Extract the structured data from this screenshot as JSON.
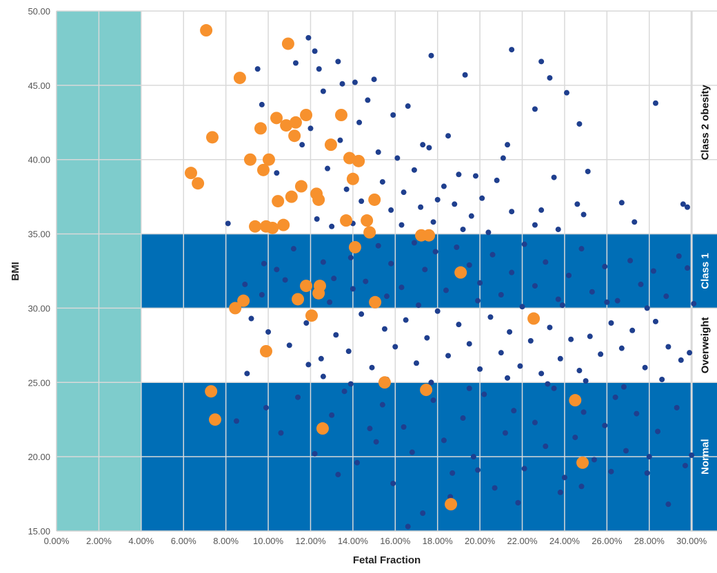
{
  "chart_data": {
    "type": "scatter",
    "title": "",
    "xlabel": "Fetal Fraction",
    "ylabel": "BMI",
    "xlim": [
      0,
      31.2
    ],
    "ylim": [
      15,
      50
    ],
    "x_ticks": [
      "0.00%",
      "2.00%",
      "4.00%",
      "6.00%",
      "8.00%",
      "10.00%",
      "12.00%",
      "14.00%",
      "16.00%",
      "18.00%",
      "20.00%",
      "22.00%",
      "24.00%",
      "26.00%",
      "28.00%",
      "30.00%"
    ],
    "y_ticks": [
      "15.00",
      "20.00",
      "25.00",
      "30.00",
      "35.00",
      "40.00",
      "45.00",
      "50.00"
    ],
    "grid": true,
    "colors": {
      "low_ff_band": "#7ecccc",
      "bmi_band": "#006eb6",
      "dark_points": "#1f3f8e",
      "highlight_points": "#f7912d"
    },
    "low_ff_region": [
      0,
      4
    ],
    "bmi_bands": [
      {
        "label": "Normal",
        "range": [
          15,
          25
        ],
        "shaded": true
      },
      {
        "label": "Overweight",
        "range": [
          25,
          30
        ],
        "shaded": false
      },
      {
        "label": "Class 1",
        "range": [
          30,
          35
        ],
        "shaded": true
      },
      {
        "label": "Class 2 obesity",
        "range": [
          35,
          50
        ],
        "shaded": false
      }
    ],
    "series": [
      {
        "points": [
          [
            8.1,
            35.7
          ],
          [
            9.5,
            46.1
          ],
          [
            9.7,
            43.7
          ],
          [
            10.4,
            39.1
          ],
          [
            11.3,
            46.5
          ],
          [
            11.9,
            48.2
          ],
          [
            12.2,
            47.3
          ],
          [
            12.4,
            46.1
          ],
          [
            12.6,
            44.6
          ],
          [
            13.3,
            46.6
          ],
          [
            13.5,
            45.1
          ],
          [
            14.1,
            45.2
          ],
          [
            14.7,
            44.0
          ],
          [
            15.0,
            45.4
          ],
          [
            15.9,
            43.0
          ],
          [
            16.6,
            43.6
          ],
          [
            17.3,
            41.0
          ],
          [
            17.7,
            47.0
          ],
          [
            18.5,
            41.6
          ],
          [
            19.3,
            45.7
          ],
          [
            21.5,
            47.4
          ],
          [
            22.6,
            43.4
          ],
          [
            22.9,
            46.6
          ],
          [
            23.3,
            45.5
          ],
          [
            24.1,
            44.5
          ],
          [
            24.7,
            42.4
          ],
          [
            28.3,
            43.8
          ],
          [
            11.6,
            41.0
          ],
          [
            12.0,
            42.1
          ],
          [
            13.4,
            41.3
          ],
          [
            14.3,
            42.5
          ],
          [
            15.2,
            40.5
          ],
          [
            16.1,
            40.1
          ],
          [
            16.9,
            39.3
          ],
          [
            17.6,
            40.8
          ],
          [
            18.3,
            38.2
          ],
          [
            19.0,
            39.0
          ],
          [
            19.8,
            38.9
          ],
          [
            20.8,
            38.6
          ],
          [
            21.1,
            40.1
          ],
          [
            21.3,
            41.0
          ],
          [
            23.5,
            38.8
          ],
          [
            25.1,
            39.2
          ],
          [
            12.8,
            39.4
          ],
          [
            13.7,
            38.0
          ],
          [
            14.4,
            37.2
          ],
          [
            15.4,
            38.5
          ],
          [
            15.8,
            36.6
          ],
          [
            16.4,
            37.8
          ],
          [
            17.2,
            36.8
          ],
          [
            18.0,
            37.3
          ],
          [
            18.8,
            37.0
          ],
          [
            19.6,
            36.2
          ],
          [
            20.1,
            37.4
          ],
          [
            21.5,
            36.5
          ],
          [
            22.9,
            36.6
          ],
          [
            24.6,
            37.0
          ],
          [
            24.9,
            36.3
          ],
          [
            26.7,
            37.1
          ],
          [
            27.3,
            35.8
          ],
          [
            29.6,
            37.0
          ],
          [
            29.8,
            36.8
          ],
          [
            12.3,
            36.0
          ],
          [
            13.0,
            35.5
          ],
          [
            14.0,
            35.7
          ],
          [
            16.3,
            35.6
          ],
          [
            17.8,
            35.8
          ],
          [
            19.2,
            35.3
          ],
          [
            20.4,
            35.1
          ],
          [
            22.6,
            35.6
          ],
          [
            23.7,
            35.3
          ],
          [
            9.8,
            33.0
          ],
          [
            10.4,
            32.6
          ],
          [
            11.2,
            34.0
          ],
          [
            12.6,
            33.1
          ],
          [
            13.1,
            32.0
          ],
          [
            13.9,
            33.4
          ],
          [
            14.6,
            31.8
          ],
          [
            15.2,
            34.2
          ],
          [
            15.8,
            33.0
          ],
          [
            16.3,
            31.4
          ],
          [
            16.9,
            34.4
          ],
          [
            17.4,
            32.6
          ],
          [
            17.9,
            33.8
          ],
          [
            18.4,
            31.2
          ],
          [
            18.9,
            34.1
          ],
          [
            19.5,
            32.9
          ],
          [
            20.0,
            31.7
          ],
          [
            20.6,
            33.6
          ],
          [
            21.0,
            30.9
          ],
          [
            21.5,
            32.4
          ],
          [
            22.1,
            34.3
          ],
          [
            22.6,
            31.5
          ],
          [
            23.1,
            33.1
          ],
          [
            23.7,
            30.6
          ],
          [
            24.2,
            32.2
          ],
          [
            24.8,
            34.0
          ],
          [
            25.3,
            31.1
          ],
          [
            25.9,
            32.8
          ],
          [
            26.5,
            30.5
          ],
          [
            27.1,
            33.2
          ],
          [
            27.6,
            31.6
          ],
          [
            28.2,
            32.5
          ],
          [
            28.8,
            30.8
          ],
          [
            29.4,
            33.5
          ],
          [
            29.8,
            32.7
          ],
          [
            30.1,
            30.3
          ],
          [
            9.2,
            29.3
          ],
          [
            10.0,
            28.4
          ],
          [
            11.0,
            27.5
          ],
          [
            11.8,
            29.0
          ],
          [
            12.5,
            26.6
          ],
          [
            13.2,
            28.2
          ],
          [
            13.8,
            27.1
          ],
          [
            14.4,
            29.6
          ],
          [
            14.9,
            26.0
          ],
          [
            15.5,
            28.6
          ],
          [
            16.0,
            27.4
          ],
          [
            16.5,
            29.2
          ],
          [
            17.0,
            26.3
          ],
          [
            17.5,
            28.0
          ],
          [
            18.0,
            29.8
          ],
          [
            18.5,
            26.8
          ],
          [
            19.0,
            28.9
          ],
          [
            19.5,
            27.6
          ],
          [
            20.0,
            25.9
          ],
          [
            20.5,
            29.4
          ],
          [
            21.0,
            27.0
          ],
          [
            21.4,
            28.4
          ],
          [
            21.9,
            26.1
          ],
          [
            22.4,
            27.8
          ],
          [
            22.9,
            25.6
          ],
          [
            23.3,
            28.7
          ],
          [
            23.8,
            26.6
          ],
          [
            24.3,
            27.9
          ],
          [
            24.7,
            25.8
          ],
          [
            25.2,
            28.1
          ],
          [
            25.7,
            26.9
          ],
          [
            26.2,
            29.0
          ],
          [
            26.7,
            27.3
          ],
          [
            27.2,
            28.5
          ],
          [
            27.8,
            26.0
          ],
          [
            28.3,
            29.1
          ],
          [
            28.9,
            27.4
          ],
          [
            29.5,
            26.5
          ],
          [
            29.9,
            27.0
          ],
          [
            8.5,
            22.4
          ],
          [
            9.9,
            23.3
          ],
          [
            10.6,
            21.6
          ],
          [
            11.4,
            24.0
          ],
          [
            12.2,
            20.2
          ],
          [
            13.0,
            22.8
          ],
          [
            13.6,
            24.4
          ],
          [
            14.2,
            19.6
          ],
          [
            14.8,
            21.9
          ],
          [
            15.4,
            23.5
          ],
          [
            15.9,
            18.2
          ],
          [
            16.4,
            22.0
          ],
          [
            16.8,
            20.3
          ],
          [
            17.3,
            16.2
          ],
          [
            17.8,
            23.8
          ],
          [
            18.3,
            21.1
          ],
          [
            18.7,
            18.9
          ],
          [
            19.2,
            22.6
          ],
          [
            19.7,
            20.0
          ],
          [
            20.2,
            24.2
          ],
          [
            20.7,
            17.9
          ],
          [
            21.2,
            21.6
          ],
          [
            21.6,
            23.1
          ],
          [
            22.1,
            19.2
          ],
          [
            22.6,
            22.3
          ],
          [
            23.1,
            20.7
          ],
          [
            23.5,
            24.6
          ],
          [
            24.0,
            18.6
          ],
          [
            24.5,
            21.3
          ],
          [
            24.9,
            23.0
          ],
          [
            25.4,
            19.8
          ],
          [
            25.9,
            22.1
          ],
          [
            26.4,
            24.0
          ],
          [
            26.9,
            20.4
          ],
          [
            27.4,
            22.9
          ],
          [
            27.9,
            18.9
          ],
          [
            28.4,
            21.7
          ],
          [
            28.9,
            16.8
          ],
          [
            29.3,
            23.3
          ],
          [
            29.7,
            19.4
          ],
          [
            30.0,
            20.1
          ],
          [
            16.6,
            15.3
          ],
          [
            18.6,
            17.3
          ],
          [
            24.8,
            18.0
          ],
          [
            13.3,
            18.8
          ],
          [
            15.1,
            21.0
          ],
          [
            19.9,
            19.1
          ],
          [
            21.8,
            16.9
          ],
          [
            23.8,
            17.6
          ],
          [
            26.2,
            19.0
          ],
          [
            28.0,
            20.0
          ],
          [
            12.6,
            25.4
          ],
          [
            13.9,
            24.9
          ],
          [
            15.6,
            25.2
          ],
          [
            17.7,
            25.0
          ],
          [
            19.5,
            24.6
          ],
          [
            21.3,
            25.3
          ],
          [
            23.2,
            24.9
          ],
          [
            25.0,
            25.1
          ],
          [
            26.8,
            24.7
          ],
          [
            28.6,
            25.2
          ],
          [
            9.0,
            25.6
          ],
          [
            11.9,
            26.2
          ],
          [
            8.9,
            31.6
          ],
          [
            9.7,
            30.9
          ],
          [
            10.8,
            31.9
          ],
          [
            12.9,
            30.4
          ],
          [
            14.0,
            31.3
          ],
          [
            15.6,
            30.8
          ],
          [
            17.1,
            30.2
          ],
          [
            19.9,
            30.5
          ],
          [
            22.0,
            30.1
          ],
          [
            23.9,
            30.2
          ],
          [
            26.0,
            30.4
          ],
          [
            27.9,
            30.0
          ]
        ]
      },
      {
        "points": [
          [
            7.07,
            48.7
          ],
          [
            8.66,
            45.5
          ],
          [
            10.94,
            47.8
          ],
          [
            7.36,
            41.5
          ],
          [
            6.35,
            39.1
          ],
          [
            6.68,
            38.4
          ],
          [
            9.64,
            42.1
          ],
          [
            10.39,
            42.8
          ],
          [
            10.85,
            42.3
          ],
          [
            11.3,
            42.5
          ],
          [
            11.79,
            43.0
          ],
          [
            11.24,
            41.6
          ],
          [
            9.15,
            40.0
          ],
          [
            10.03,
            40.0
          ],
          [
            9.77,
            39.3
          ],
          [
            12.96,
            41.0
          ],
          [
            13.45,
            43.0
          ],
          [
            13.84,
            40.1
          ],
          [
            14.27,
            39.9
          ],
          [
            14.0,
            38.7
          ],
          [
            11.56,
            38.2
          ],
          [
            12.28,
            37.7
          ],
          [
            12.38,
            37.3
          ],
          [
            11.1,
            37.5
          ],
          [
            10.46,
            37.2
          ],
          [
            15.02,
            37.3
          ],
          [
            9.38,
            35.5
          ],
          [
            9.9,
            35.5
          ],
          [
            10.2,
            35.4
          ],
          [
            10.72,
            35.6
          ],
          [
            13.68,
            35.9
          ],
          [
            14.66,
            35.9
          ],
          [
            14.79,
            35.1
          ],
          [
            17.23,
            34.9
          ],
          [
            17.59,
            34.9
          ],
          [
            14.1,
            34.1
          ],
          [
            19.09,
            32.4
          ],
          [
            11.79,
            31.5
          ],
          [
            12.44,
            31.5
          ],
          [
            12.38,
            31.0
          ],
          [
            11.4,
            30.6
          ],
          [
            15.05,
            30.4
          ],
          [
            8.83,
            30.5
          ],
          [
            8.44,
            30.0
          ],
          [
            12.05,
            29.5
          ],
          [
            22.54,
            29.3
          ],
          [
            9.9,
            27.1
          ],
          [
            15.5,
            25.0
          ],
          [
            17.46,
            24.5
          ],
          [
            7.3,
            24.4
          ],
          [
            7.49,
            22.5
          ],
          [
            12.57,
            21.9
          ],
          [
            24.5,
            23.8
          ],
          [
            24.85,
            19.6
          ],
          [
            18.63,
            16.8
          ]
        ]
      }
    ]
  }
}
